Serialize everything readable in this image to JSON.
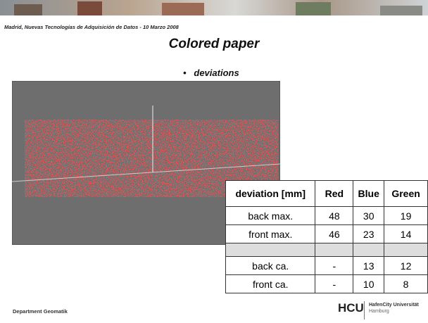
{
  "header": {
    "text": "Madrid,  Nuevas Tecnologías de Adquisición de Datos -  10 Marzo 2008"
  },
  "title": "Colored paper",
  "bullet": "deviations",
  "table": {
    "columns": [
      "deviation [mm]",
      "Red",
      "Blue",
      "Green"
    ],
    "groups": [
      [
        [
          "back max.",
          48,
          30,
          19
        ],
        [
          "front max.",
          46,
          23,
          14
        ]
      ],
      [
        [
          "back ca.",
          "-",
          13,
          12
        ],
        [
          "front ca.",
          "-",
          10,
          8
        ]
      ]
    ]
  },
  "footer": {
    "department": "Department Geomatik",
    "logo": "HCU",
    "university": "HafenCity Universität",
    "city": "Hamburg"
  }
}
